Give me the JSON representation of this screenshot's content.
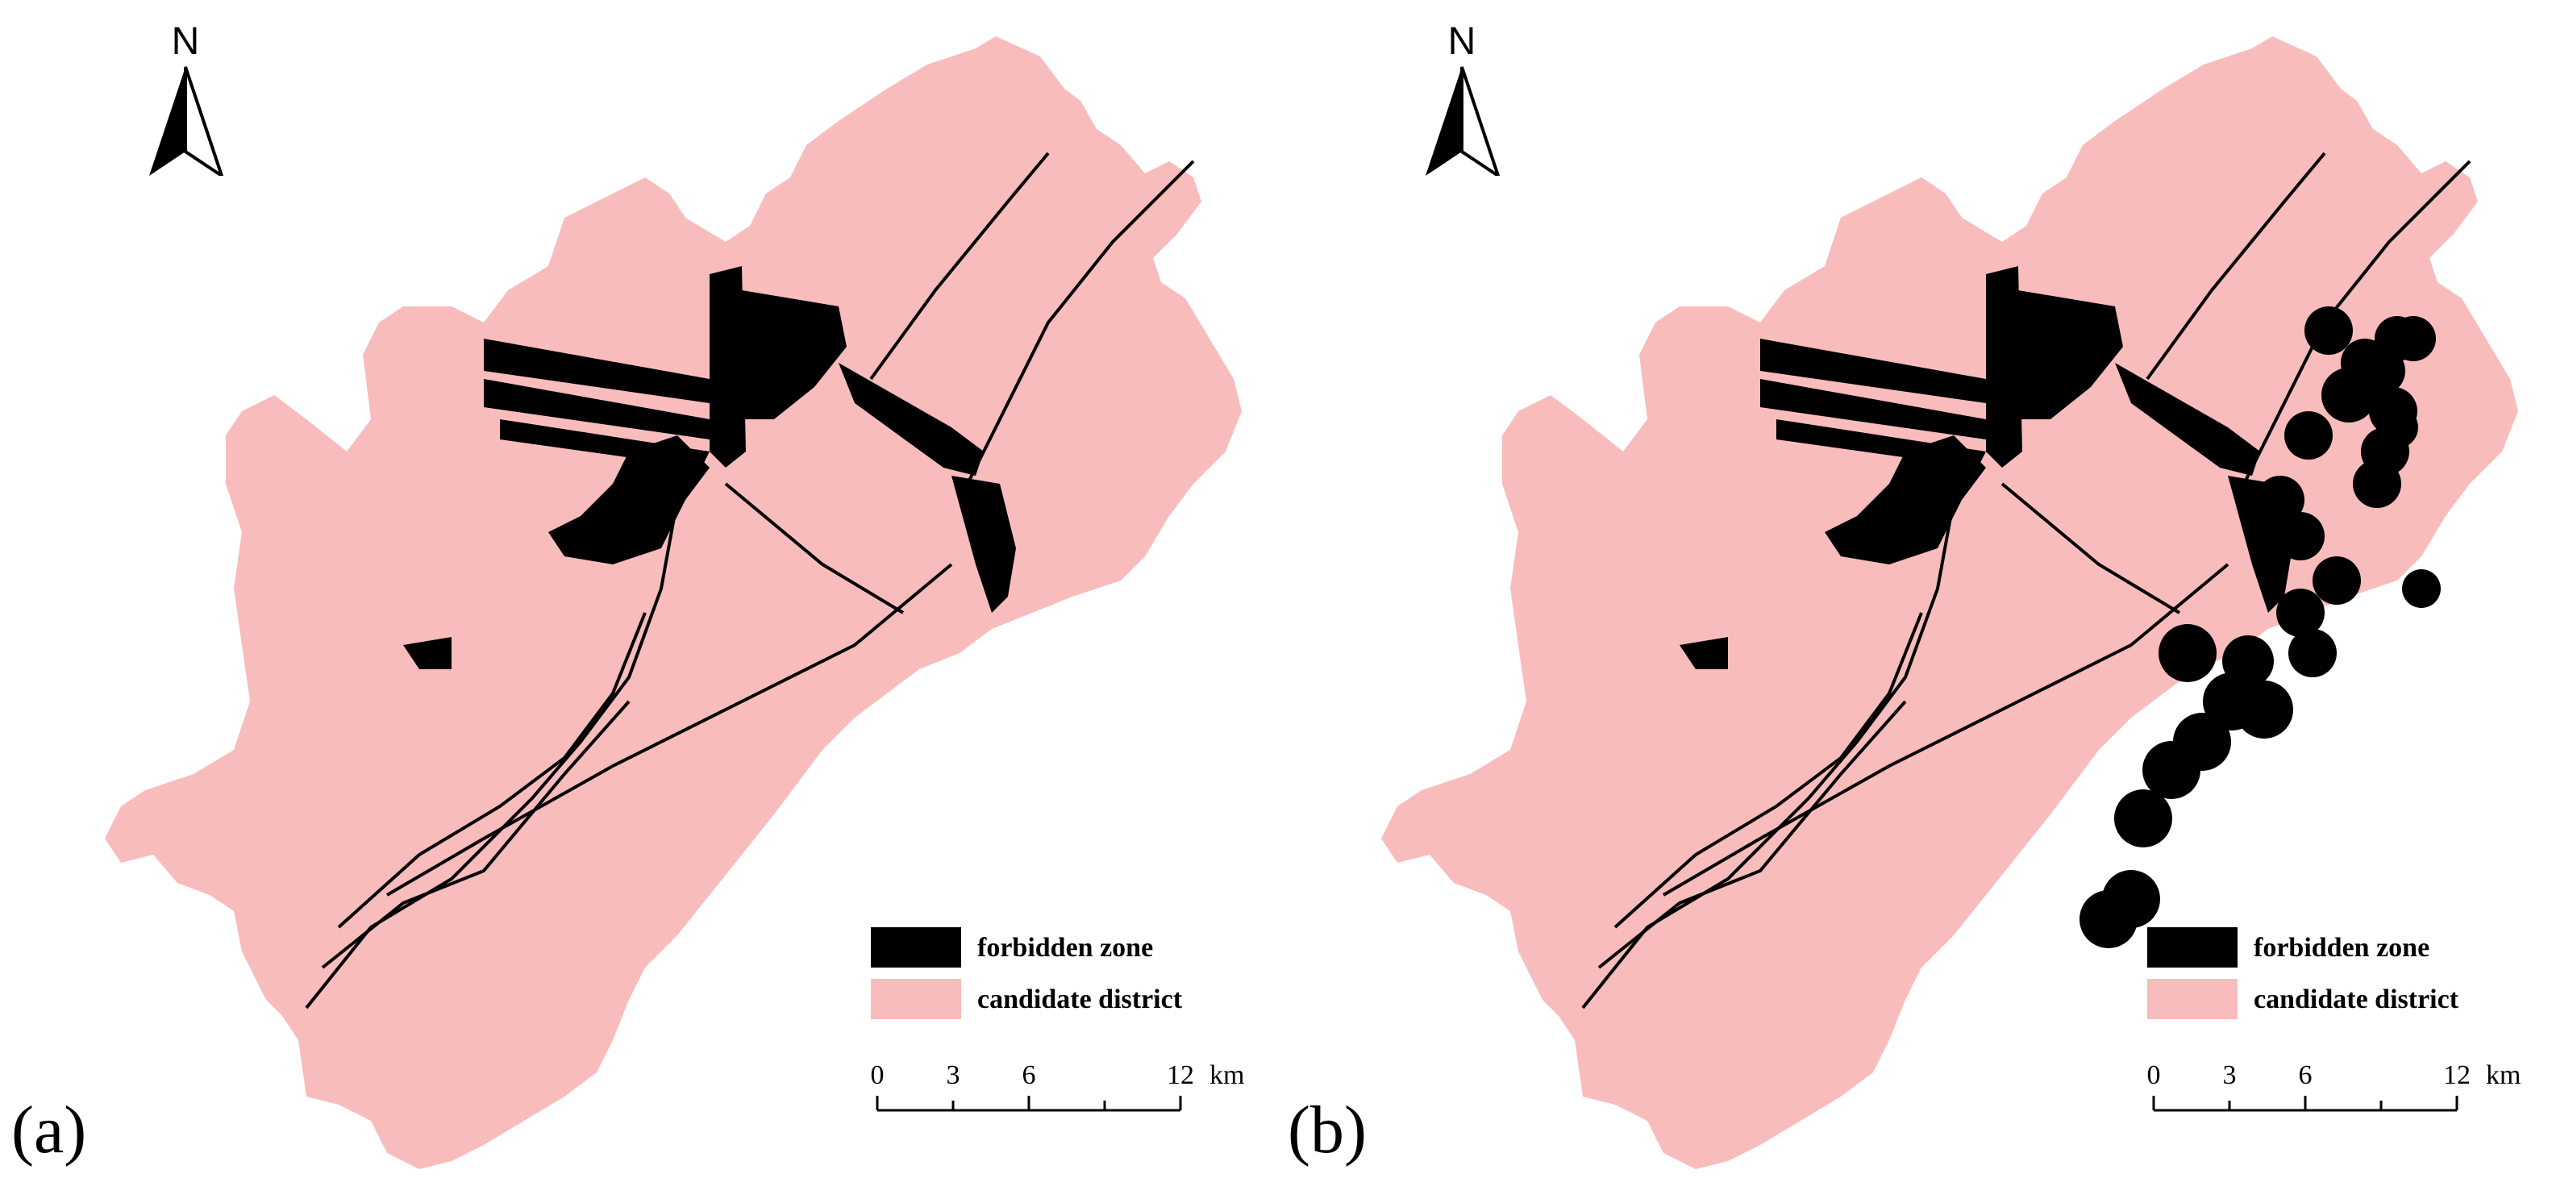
{
  "panels": [
    {
      "id": "a",
      "label": "(a)"
    },
    {
      "id": "b",
      "label": "(b)"
    }
  ],
  "north_arrow": {
    "letter": "N"
  },
  "legend": {
    "items": [
      {
        "label": "forbidden zone",
        "color": "#000000"
      },
      {
        "label": "candidate district",
        "color": "#f9bcbc"
      }
    ]
  },
  "scale_bar": {
    "ticks": [
      "0",
      "3",
      "6",
      "12"
    ],
    "unit": "km"
  },
  "colors": {
    "candidate": "#f9bcbc",
    "forbidden": "#000000"
  }
}
